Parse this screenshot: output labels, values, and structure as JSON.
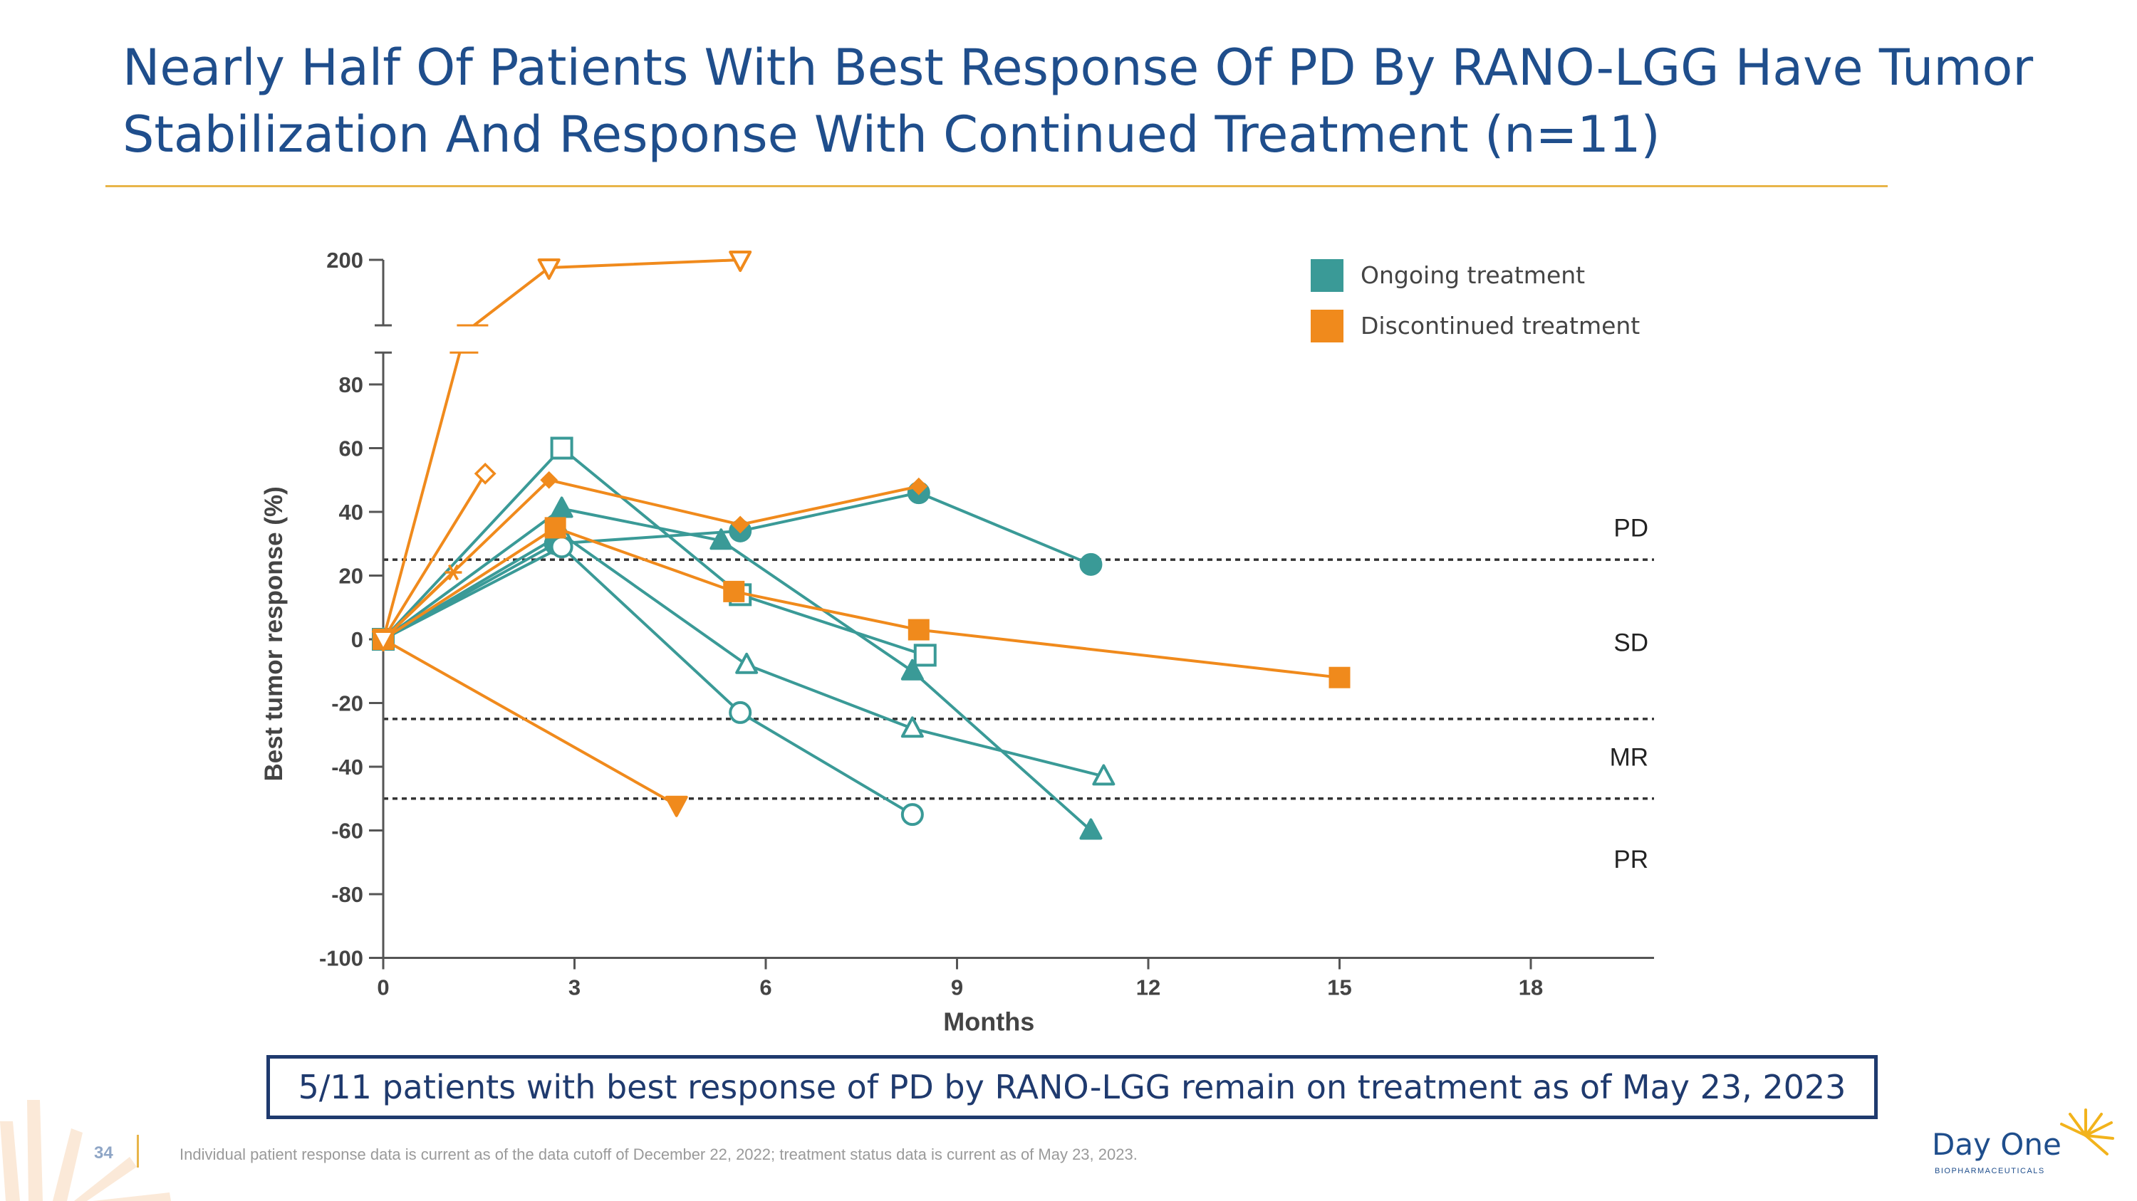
{
  "slide": {
    "title": "Nearly Half Of Patients With Best Response Of PD By RANO-LGG Have Tumor Stabilization And Response With Continued Treatment (n=11)",
    "callout": "5/11 patients with best response of PD by RANO-LGG remain on treatment as of May 23, 2023",
    "page_number": "34",
    "footnote": "Individual patient response data is current as of the data cutoff of December 22, 2022; treatment status data is current as of May 23, 2023.",
    "logo_name": "Day One",
    "logo_sub": "BIOPHARMACEUTICALS",
    "colors": {
      "title": "#1f4e8c",
      "accent": "#e8b54a",
      "ongoing": "#3a9a97",
      "discontinued": "#f08a1c"
    }
  },
  "chart_data": {
    "type": "line",
    "xlabel": "Months",
    "ylabel": "Best tumor response (%)",
    "x_ticks": [
      0,
      3,
      6,
      9,
      12,
      15,
      18
    ],
    "x_range": [
      0,
      20
    ],
    "y_ticks_lower": [
      -100,
      -80,
      -60,
      -40,
      -20,
      0,
      20,
      40,
      60,
      80
    ],
    "y_ticks_upper": [
      200
    ],
    "y_range": [
      -100,
      200
    ],
    "axis_break": true,
    "legend": [
      {
        "label": "Ongoing treatment",
        "color": "#3a9a97"
      },
      {
        "label": "Discontinued treatment",
        "color": "#f08a1c"
      }
    ],
    "thresholds": [
      {
        "y": 25,
        "label": "PD"
      },
      {
        "y": -25,
        "label": "MR"
      },
      {
        "y": -50,
        "label": "PR"
      }
    ],
    "region_labels": [
      {
        "label": "PD",
        "y": 35
      },
      {
        "label": "SD",
        "y": -1
      },
      {
        "label": "MR",
        "y": -37
      },
      {
        "label": "PR",
        "y": -69
      }
    ],
    "series": [
      {
        "name": "Ongoing: filled circle",
        "status": "ongoing",
        "marker": "circle",
        "filled": true,
        "x": [
          0,
          2.7,
          5.6,
          8.4,
          11.1
        ],
        "y": [
          0,
          30,
          34,
          46,
          23.5
        ]
      },
      {
        "name": "Ongoing: open square",
        "status": "ongoing",
        "marker": "square",
        "filled": false,
        "x": [
          0,
          2.8,
          5.6,
          8.5
        ],
        "y": [
          0,
          60,
          14,
          -5
        ]
      },
      {
        "name": "Ongoing: filled triangle",
        "status": "ongoing",
        "marker": "triangle",
        "filled": true,
        "x": [
          0,
          2.8,
          5.3,
          8.3,
          11.1
        ],
        "y": [
          0,
          41,
          31,
          -10,
          -60
        ]
      },
      {
        "name": "Ongoing: open triangle",
        "status": "ongoing",
        "marker": "triangle",
        "filled": false,
        "x": [
          0,
          2.8,
          5.7,
          8.3,
          11.3
        ],
        "y": [
          0,
          33,
          -8,
          -28,
          -43
        ]
      },
      {
        "name": "Ongoing: open circle",
        "status": "ongoing",
        "marker": "circle",
        "filled": false,
        "x": [
          0,
          2.8,
          5.6,
          8.3
        ],
        "y": [
          0,
          29,
          -23,
          -55
        ]
      },
      {
        "name": "Discontinued: filled square",
        "status": "discontinued",
        "marker": "square",
        "filled": true,
        "x": [
          0,
          2.7,
          5.5,
          8.4,
          15
        ],
        "y": [
          0,
          35,
          15,
          3,
          -12
        ]
      },
      {
        "name": "Discontinued: filled diamond",
        "status": "discontinued",
        "marker": "diamond",
        "filled": true,
        "x": [
          0,
          2.6,
          5.6,
          8.4
        ],
        "y": [
          0,
          50,
          36,
          48
        ]
      },
      {
        "name": "Discontinued: open diamond",
        "status": "discontinued",
        "marker": "diamond",
        "filled": false,
        "x": [
          0,
          1.6
        ],
        "y": [
          0,
          52
        ]
      },
      {
        "name": "Discontinued: asterisk",
        "status": "discontinued",
        "marker": "asterisk",
        "filled": false,
        "x": [
          0,
          1.1
        ],
        "y": [
          0,
          21
        ]
      },
      {
        "name": "Discontinued: filled down-triangle",
        "status": "discontinued",
        "marker": "down-triangle",
        "filled": true,
        "x": [
          0,
          4.6
        ],
        "y": [
          0,
          -52
        ]
      },
      {
        "name": "Discontinued: open down-triangle",
        "status": "discontinued",
        "marker": "down-triangle",
        "filled": false,
        "x": [
          0,
          2.6,
          5.6
        ],
        "y": [
          0,
          195,
          200
        ]
      }
    ]
  }
}
